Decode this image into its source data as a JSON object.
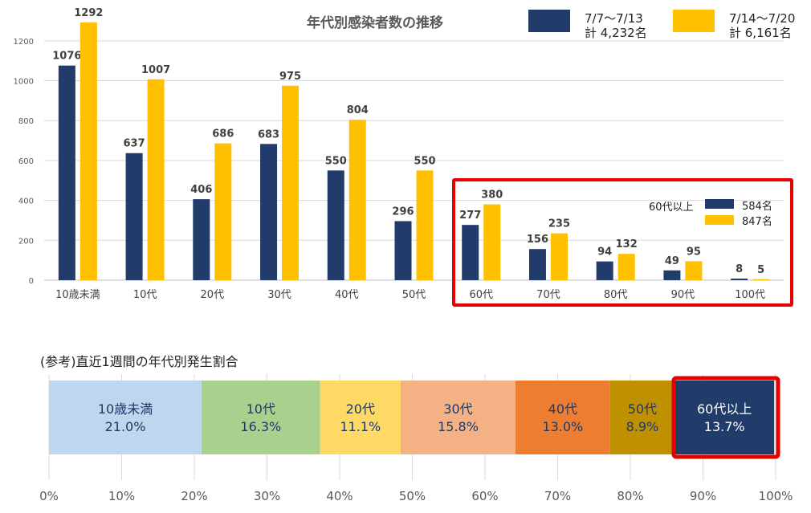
{
  "title": "年代別感染者数の推移",
  "legend": [
    {
      "range": "7/7～7/13",
      "total": "計  4,232名",
      "color": "#213c6b"
    },
    {
      "range": "7/14～7/20",
      "total": "計  6,161名",
      "color": "#ffc000"
    }
  ],
  "inset": {
    "label": "60代以上",
    "values": [
      "584名",
      "847名"
    ]
  },
  "ref_title": "(参考)直近1週間の年代別発生割合",
  "chart_data": [
    {
      "type": "bar",
      "title": "年代別感染者数の推移",
      "categories": [
        "10歳未満",
        "10代",
        "20代",
        "30代",
        "40代",
        "50代",
        "60代",
        "70代",
        "80代",
        "90代",
        "100代"
      ],
      "series": [
        {
          "name": "7/7～7/13",
          "values": [
            1076,
            637,
            406,
            683,
            550,
            296,
            277,
            156,
            94,
            49,
            8
          ],
          "color": "#213c6b"
        },
        {
          "name": "7/14～7/20",
          "values": [
            1292,
            1007,
            686,
            975,
            804,
            550,
            380,
            235,
            132,
            95,
            5
          ],
          "color": "#ffc000"
        }
      ],
      "ylim": [
        0,
        1300
      ],
      "yticks": [
        0,
        200,
        400,
        600,
        800,
        1000,
        1200
      ],
      "grid": true,
      "legend_position": "top-right"
    },
    {
      "type": "bar",
      "orientation": "horizontal-stacked",
      "title": "(参考)直近1週間の年代別発生割合",
      "segments": [
        {
          "label": "10歳未満",
          "pct": "21.0%",
          "value": 21.0,
          "color": "#bdd7ee",
          "text": "#1f3864"
        },
        {
          "label": "10代",
          "pct": "16.3%",
          "value": 16.3,
          "color": "#a9d18e",
          "text": "#1f3864"
        },
        {
          "label": "20代",
          "pct": "11.1%",
          "value": 11.1,
          "color": "#ffd966",
          "text": "#1f3864"
        },
        {
          "label": "30代",
          "pct": "15.8%",
          "value": 15.8,
          "color": "#f4b183",
          "text": "#1f3864"
        },
        {
          "label": "40代",
          "pct": "13.0%",
          "value": 13.0,
          "color": "#ed7d31",
          "text": "#1f3864"
        },
        {
          "label": "50代",
          "pct": "8.9%",
          "value": 8.9,
          "color": "#bf9000",
          "text": "#1f3864"
        },
        {
          "label": "60代以上",
          "pct": "13.7%",
          "value": 13.7,
          "color": "#213c6b",
          "text": "#ffffff"
        }
      ],
      "xticks": [
        "0%",
        "10%",
        "20%",
        "30%",
        "40%",
        "50%",
        "60%",
        "70%",
        "80%",
        "90%",
        "100%"
      ],
      "xlim": [
        0,
        100
      ]
    }
  ]
}
